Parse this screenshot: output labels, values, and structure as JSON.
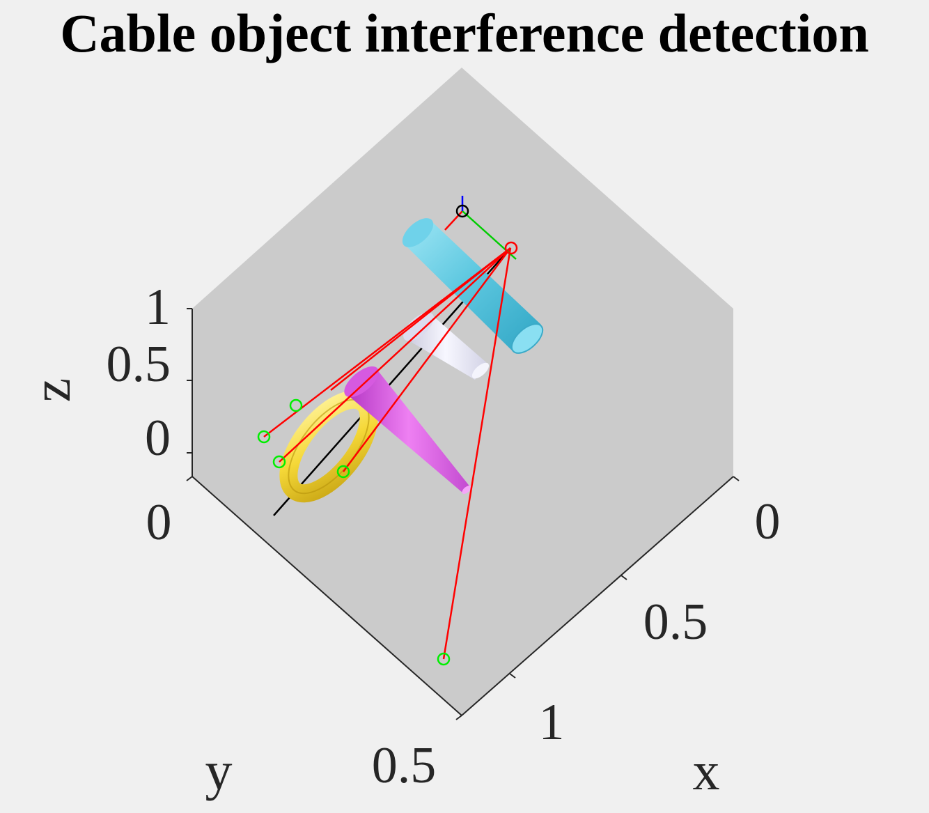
{
  "chart_data": {
    "type": "3d-scene",
    "title": "Cable object interference detection",
    "xlabel": "x",
    "ylabel": "y",
    "zlabel": "z",
    "x_ticks": [
      "0",
      "0.5",
      "1"
    ],
    "y_ticks": [
      "0",
      "0.5"
    ],
    "z_ticks": [
      "0",
      "0.5",
      "1"
    ],
    "view": "isometric",
    "grid": false,
    "colors": {
      "pane": "#cbcbcb",
      "axis": "#262626",
      "cable": "#ff0000",
      "anchor_marker": "#00ee00",
      "base_marker": "#000000",
      "center_marker": "#ff0000",
      "center_axis_line": "#000000",
      "frame_x": "#00cc00",
      "frame_z": "#0000ff"
    },
    "objects": [
      {
        "name": "cylinder",
        "color": "#5ec8e0"
      },
      {
        "name": "cone-white",
        "color": "#e8e8f5"
      },
      {
        "name": "cone-magenta",
        "color": "#e060e8"
      },
      {
        "name": "torus",
        "color": "#f5d838"
      }
    ],
    "anchor_count": 5
  }
}
